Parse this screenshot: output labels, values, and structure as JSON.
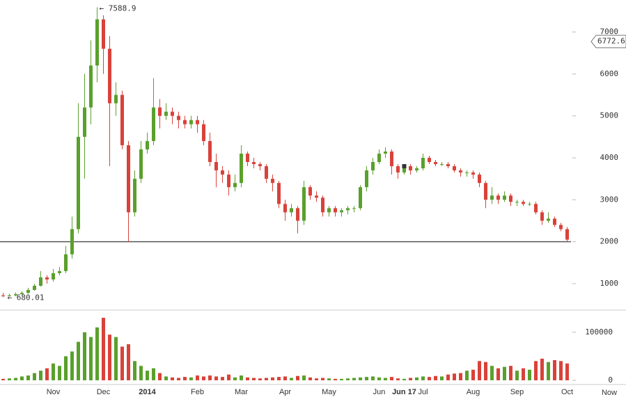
{
  "chart_data": {
    "type": "candlestick",
    "categories": [
      null,
      null,
      null,
      null,
      null,
      null,
      null,
      null,
      "Nov",
      null,
      null,
      null,
      null,
      null,
      null,
      null,
      "Dec",
      null,
      null,
      null,
      null,
      null,
      null,
      "2014",
      null,
      null,
      null,
      null,
      null,
      null,
      null,
      "Feb",
      null,
      null,
      null,
      null,
      null,
      null,
      "Mar",
      null,
      null,
      null,
      null,
      null,
      null,
      "Apr",
      null,
      null,
      null,
      null,
      null,
      null,
      "May",
      null,
      null,
      null,
      null,
      null,
      null,
      null,
      "Jun",
      null,
      null,
      null,
      "Jun 17",
      null,
      null,
      "Jul",
      null,
      null,
      null,
      null,
      null,
      null,
      null,
      "Aug",
      null,
      null,
      null,
      null,
      null,
      null,
      "Sep",
      null,
      null,
      null,
      null,
      null,
      null,
      null,
      "Oct"
    ],
    "open": [
      720,
      700,
      720,
      750,
      780,
      850,
      950,
      1150,
      1100,
      1250,
      1300,
      1700,
      2300,
      4500,
      5200,
      6200,
      7300,
      6600,
      5300,
      5500,
      4300,
      2700,
      3500,
      4200,
      4400,
      5200,
      5000,
      5100,
      5000,
      4900,
      4800,
      4900,
      4800,
      4400,
      3900,
      3700,
      3600,
      3300,
      3400,
      4100,
      3900,
      3850,
      3800,
      3500,
      3400,
      2900,
      2700,
      2800,
      2500,
      3300,
      3100,
      3050,
      2700,
      2800,
      2700,
      2750,
      2800,
      2800,
      3300,
      3700,
      3900,
      4100,
      4150,
      3800,
      3650,
      3800,
      3700,
      3750,
      4000,
      3900,
      3850,
      3850,
      3800,
      3700,
      3650,
      3650,
      3600,
      3400,
      3000,
      3100,
      3000,
      3100,
      2950,
      2950,
      2900,
      2900,
      2700,
      2500,
      2550,
      2400,
      2300
    ],
    "high": [
      780,
      760,
      790,
      820,
      900,
      1000,
      1300,
      1200,
      1350,
      1400,
      1900,
      2600,
      5300,
      6000,
      6800,
      7588.9,
      7400,
      6900,
      5800,
      5600,
      4400,
      3700,
      4400,
      4600,
      5900,
      5400,
      5300,
      5200,
      5100,
      5000,
      5000,
      5000,
      4900,
      4600,
      4100,
      3800,
      3700,
      3600,
      4300,
      4150,
      4000,
      3900,
      3850,
      3600,
      3450,
      3000,
      2900,
      2850,
      3450,
      3350,
      3200,
      3100,
      2850,
      2850,
      2800,
      2850,
      2850,
      3350,
      3800,
      4000,
      4200,
      4250,
      4200,
      3850,
      3850,
      3850,
      3800,
      4100,
      4050,
      3950,
      3900,
      3900,
      3850,
      3750,
      3700,
      3700,
      3650,
      3450,
      3300,
      3150,
      3200,
      3150,
      3000,
      3000,
      2950,
      2950,
      2750,
      2700,
      2600,
      2450,
      2350
    ],
    "low": [
      680.01,
      690,
      700,
      730,
      760,
      830,
      930,
      1000,
      1050,
      1200,
      1250,
      1600,
      2200,
      3500,
      4800,
      5800,
      6000,
      3800,
      5000,
      4200,
      2000,
      2600,
      3400,
      4100,
      4300,
      4700,
      4900,
      4800,
      4700,
      4700,
      4700,
      4600,
      4300,
      3800,
      3300,
      3400,
      3100,
      3200,
      3300,
      3800,
      3750,
      3700,
      3400,
      3200,
      2800,
      2500,
      2600,
      2200,
      2400,
      3000,
      2950,
      2600,
      2600,
      2600,
      2600,
      2650,
      2700,
      2750,
      3200,
      3600,
      3850,
      4000,
      3600,
      3500,
      3600,
      3600,
      3650,
      3700,
      3850,
      3800,
      3800,
      3750,
      3650,
      3550,
      3550,
      3500,
      3300,
      2800,
      2900,
      2900,
      2950,
      2850,
      2850,
      2850,
      2850,
      2650,
      2400,
      2450,
      2350,
      2250,
      2000
    ],
    "close": [
      700,
      720,
      750,
      780,
      850,
      950,
      1150,
      1100,
      1250,
      1300,
      1700,
      2300,
      4500,
      5200,
      6200,
      7300,
      6600,
      5300,
      5500,
      4300,
      2700,
      3500,
      4200,
      4400,
      5200,
      5000,
      5100,
      5000,
      4900,
      4800,
      4900,
      4800,
      4400,
      3900,
      3700,
      3600,
      3300,
      3400,
      4100,
      3900,
      3850,
      3800,
      3500,
      3400,
      2900,
      2700,
      2800,
      2500,
      3300,
      3100,
      3050,
      2700,
      2800,
      2700,
      2750,
      2800,
      2800,
      3300,
      3700,
      3900,
      4100,
      4150,
      3800,
      3650,
      3800,
      3700,
      3750,
      4000,
      3900,
      3850,
      3850,
      3800,
      3700,
      3650,
      3650,
      3600,
      3400,
      3000,
      3100,
      3000,
      3100,
      2950,
      2950,
      2900,
      2900,
      2700,
      2500,
      2550,
      2400,
      2300,
      2050
    ],
    "volume": [
      3000,
      4000,
      5000,
      8000,
      10000,
      15000,
      20000,
      25000,
      35000,
      30000,
      50000,
      60000,
      80000,
      100000,
      90000,
      110000,
      130000,
      95000,
      90000,
      70000,
      75000,
      40000,
      30000,
      20000,
      25000,
      15000,
      8000,
      6000,
      5000,
      7000,
      6000,
      10000,
      8000,
      10000,
      8000,
      7000,
      12000,
      6000,
      10000,
      6000,
      5000,
      4000,
      5000,
      6000,
      7000,
      8000,
      5000,
      9000,
      10000,
      6000,
      4000,
      5000,
      4000,
      3000,
      3000,
      4000,
      5000,
      6000,
      7000,
      8000,
      6000,
      5000,
      7000,
      4000,
      3000,
      5000,
      6000,
      8000,
      7000,
      9000,
      8000,
      12000,
      14000,
      15000,
      20000,
      22000,
      40000,
      38000,
      30000,
      25000,
      28000,
      30000,
      20000,
      25000,
      22000,
      40000,
      45000,
      38000,
      42000,
      40000,
      35000
    ],
    "ylim": [
      370,
      7762
    ],
    "yticks": [
      1000,
      2000,
      3000,
      4000,
      5000,
      6000,
      7000
    ],
    "volume_ylim": [
      -8700,
      146000
    ],
    "volume_yticks": [
      0,
      100000
    ],
    "up_color": "#5aa02c",
    "down_color": "#d9423a",
    "reference_line": 2000,
    "max_label": "← 7588.9",
    "min_label": "← 680.01",
    "last_price": 6772.6,
    "now_label": "Now",
    "cursor_category": "Jun 17"
  }
}
